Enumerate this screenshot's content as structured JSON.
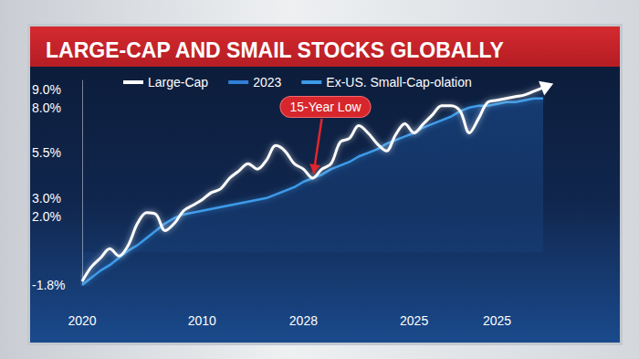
{
  "chart_data": {
    "type": "line",
    "title": "LARGE-CAP AND SMAIL STOCKS GLOBALLY",
    "categories": [
      "2020",
      null,
      null,
      null,
      null,
      null,
      null,
      null,
      null,
      null,
      null,
      null,
      null,
      "2010",
      null,
      null,
      null,
      null,
      null,
      null,
      null,
      null,
      null,
      null,
      "2028",
      null,
      null,
      null,
      null,
      null,
      null,
      null,
      null,
      null,
      null,
      null,
      "2025",
      null,
      null,
      null,
      null,
      null,
      null,
      null,
      null,
      "2025",
      null,
      null,
      null,
      null,
      null
    ],
    "series": [
      {
        "name": "Large-Cap",
        "color": "#ffffff",
        "values": [
          -1.6,
          -0.8,
          -0.3,
          0.2,
          -0.2,
          0.4,
          1.6,
          2.2,
          2.1,
          1.2,
          1.6,
          2.3,
          2.6,
          2.9,
          3.3,
          3.5,
          4.1,
          4.5,
          4.9,
          4.6,
          5.1,
          5.9,
          5.6,
          4.9,
          4.6,
          4.1,
          4.6,
          4.9,
          6.1,
          6.3,
          7.0,
          6.6,
          6.0,
          5.6,
          6.5,
          7.1,
          6.6,
          7.1,
          7.6,
          8.1,
          8.1,
          7.8,
          6.6,
          7.4,
          8.3,
          8.4,
          8.5,
          8.6,
          8.7,
          8.9,
          9.1
        ]
      },
      {
        "name": "2023",
        "color": "#2f7fd8",
        "values": [
          null,
          null,
          null,
          null,
          null,
          null,
          null,
          null,
          null,
          null,
          null,
          null,
          null,
          null,
          null,
          null,
          null,
          null,
          null,
          null,
          null,
          null,
          null,
          null,
          null,
          null,
          null,
          null,
          null,
          null,
          null,
          null,
          null,
          null,
          null,
          null,
          null,
          null,
          null,
          null,
          null,
          null,
          null,
          null,
          null,
          null,
          null,
          null,
          null,
          null,
          null
        ]
      },
      {
        "name": "Ex-US. Small-Cap-olation",
        "color": "#3d9be9",
        "values": [
          -1.8,
          -1.4,
          -1.0,
          -0.7,
          -0.3,
          0.1,
          0.4,
          0.8,
          1.2,
          1.6,
          1.9,
          2.1,
          2.2,
          2.3,
          2.4,
          2.5,
          2.6,
          2.7,
          2.8,
          2.9,
          3.0,
          3.2,
          3.4,
          3.6,
          3.9,
          4.1,
          4.3,
          4.6,
          4.8,
          5.0,
          5.3,
          5.5,
          5.7,
          6.0,
          6.2,
          6.4,
          6.6,
          6.9,
          7.1,
          7.3,
          7.5,
          7.8,
          8.0,
          8.1,
          8.1,
          8.2,
          8.3,
          8.3,
          8.4,
          8.5,
          8.5
        ]
      }
    ],
    "ylim": [
      -1.8,
      9.5
    ],
    "yticks": [
      {
        "value": -1.8,
        "label": "-1.8%"
      },
      {
        "value": 2.0,
        "label": "2.0%"
      },
      {
        "value": 3.0,
        "label": "3.0%"
      },
      {
        "value": 5.5,
        "label": "5.5%"
      },
      {
        "value": 8.0,
        "label": "8.0%"
      },
      {
        "value": 9.0,
        "label": "9.0%"
      }
    ],
    "grid": false,
    "legend": "top",
    "annotations": [
      {
        "text": "15-Year Low",
        "series": "Large-Cap",
        "index": 25
      }
    ]
  }
}
